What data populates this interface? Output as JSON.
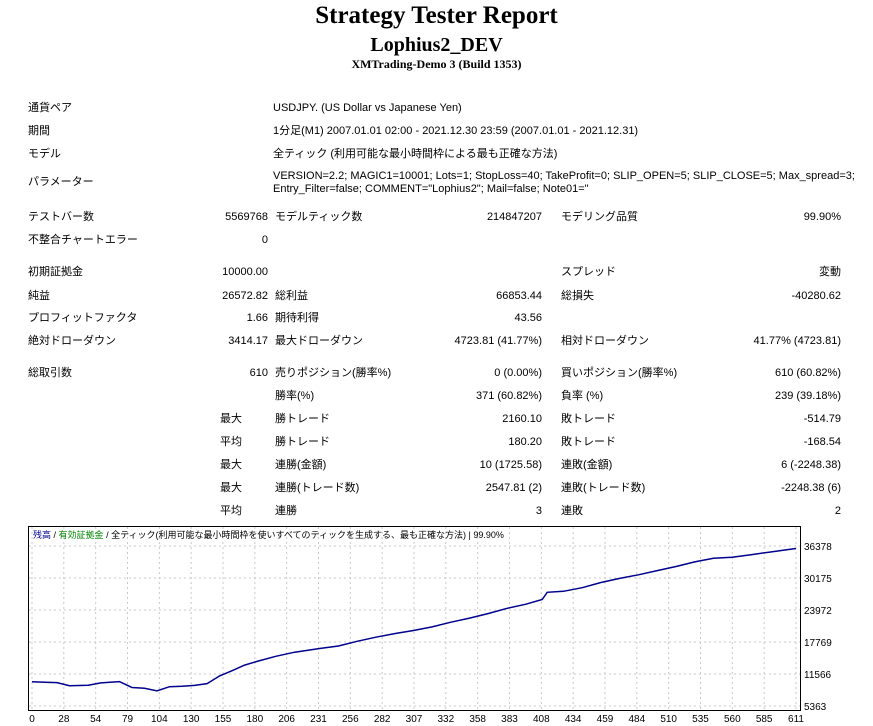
{
  "header": {
    "title": "Strategy Tester Report",
    "expert": "Lophius2_DEV",
    "server": "XMTrading-Demo 3 (Build 1353)"
  },
  "info": {
    "symbol_label": "通貨ペア",
    "symbol_value": "USDJPY. (US Dollar vs Japanese Yen)",
    "period_label": "期間",
    "period_value": "1分足(M1) 2007.01.01 02:00 - 2021.12.30 23:59 (2007.01.01 - 2021.12.31)",
    "model_label": "モデル",
    "model_value": "全ティック (利用可能な最小時間枠による最も正確な方法)",
    "params_label": "パラメーター",
    "params_line1": "VERSION=2.2; MAGIC1=10001; Lots=1; StopLoss=40; TakeProfit=0; SLIP_OPEN=5; SLIP_CLOSE=5; Max_spread=3;",
    "params_line2": "Entry_Filter=false; COMMENT=\"Lophius2\"; Mail=false; Note01=\""
  },
  "stats": {
    "bars_label": "テストバー数",
    "bars_value": "5569768",
    "ticks_label": "モデルティック数",
    "ticks_value": "214847207",
    "quality_label": "モデリング品質",
    "quality_value": "99.90%",
    "mismatch_label": "不整合チャートエラー",
    "mismatch_value": "0",
    "deposit_label": "初期証拠金",
    "deposit_value": "10000.00",
    "spread_label": "スプレッド",
    "spread_value": "変動",
    "net_label": "純益",
    "net_value": "26572.82",
    "gross_profit_label": "総利益",
    "gross_profit_value": "66853.44",
    "gross_loss_label": "総損失",
    "gross_loss_value": "-40280.62",
    "pf_label": "プロフィットファクタ",
    "pf_value": "1.66",
    "payoff_label": "期待利得",
    "payoff_value": "43.56",
    "abs_dd_label": "絶対ドローダウン",
    "abs_dd_value": "3414.17",
    "max_dd_label": "最大ドローダウン",
    "max_dd_value": "4723.81 (41.77%)",
    "rel_dd_label": "相対ドローダウン",
    "rel_dd_value": "41.77% (4723.81)",
    "trades_label": "総取引数",
    "trades_value": "610",
    "short_label": "売りポジション(勝率%)",
    "short_value": "0 (0.00%)",
    "long_label": "買いポジション(勝率%)",
    "long_value": "610 (60.82%)",
    "winrate_label": "勝率(%)",
    "winrate_value": "371 (60.82%)",
    "lossrate_label": "負率 (%)",
    "lossrate_value": "239 (39.18%)",
    "max_word": "最大",
    "avg_word": "平均",
    "largest_win_label": "勝トレード",
    "largest_win_value": "2160.10",
    "largest_loss_label": "敗トレード",
    "largest_loss_value": "-514.79",
    "avg_win_label": "勝トレード",
    "avg_win_value": "180.20",
    "avg_loss_label": "敗トレード",
    "avg_loss_value": "-168.54",
    "max_consec_wins_label": "連勝(金額)",
    "max_consec_wins_value": "10 (1725.58)",
    "max_consec_losses_label": "連敗(金額)",
    "max_consec_losses_value": "6 (-2248.38)",
    "max_consec_profit_label": "連勝(トレード数)",
    "max_consec_profit_value": "2547.81 (2)",
    "max_consec_loss_label": "連敗(トレード数)",
    "max_consec_loss_value": "-2248.38 (6)",
    "avg_consec_wins_label": "連勝",
    "avg_consec_wins_value": "3",
    "avg_consec_losses_label": "連敗",
    "avg_consec_losses_value": "2"
  },
  "chart_legend": {
    "balance": "残高",
    "sep1": " / ",
    "equity": "有効証拠金",
    "sep2": " / ",
    "model": "全ティック(利用可能な最小時間枠を使いすべてのティックを生成する、最も正確な方法)",
    "quality": " | 99.90%"
  },
  "colors": {
    "balance": "#00008b",
    "equity": "#008000",
    "grid": "#c8c8c8"
  },
  "chart_data": {
    "type": "line",
    "y_ticks": [
      "36378",
      "30175",
      "23972",
      "17769",
      "11566",
      "5363"
    ],
    "x_ticks": [
      "0",
      "28",
      "54",
      "79",
      "104",
      "130",
      "155",
      "180",
      "206",
      "231",
      "256",
      "282",
      "307",
      "332",
      "358",
      "383",
      "408",
      "434",
      "459",
      "484",
      "510",
      "535",
      "560",
      "585",
      "611"
    ],
    "ylim": [
      5363,
      36378
    ],
    "xlim": [
      0,
      611
    ],
    "series": [
      {
        "x": [
          0,
          10,
          20,
          30,
          45,
          55,
          70,
          80,
          90,
          100,
          110,
          120,
          130,
          140,
          150,
          160,
          170,
          180,
          195,
          210,
          230,
          245,
          260,
          275,
          290,
          305,
          320,
          335,
          350,
          365,
          380,
          395,
          408,
          412,
          425,
          440,
          455,
          470,
          485,
          500,
          515,
          530,
          545,
          560,
          575,
          590,
          605,
          611
        ],
        "values": [
          10050,
          9950,
          9900,
          9300,
          9400,
          9850,
          10100,
          8950,
          8800,
          8300,
          9100,
          9200,
          9350,
          9700,
          11200,
          12200,
          13300,
          14000,
          15000,
          15800,
          16500,
          17000,
          17900,
          18700,
          19400,
          20000,
          20700,
          21600,
          22400,
          23300,
          24300,
          25100,
          26000,
          27400,
          27600,
          28300,
          29300,
          30100,
          30800,
          31600,
          32400,
          33300,
          34000,
          34200,
          34700,
          35200,
          35700,
          35900
        ]
      }
    ]
  }
}
